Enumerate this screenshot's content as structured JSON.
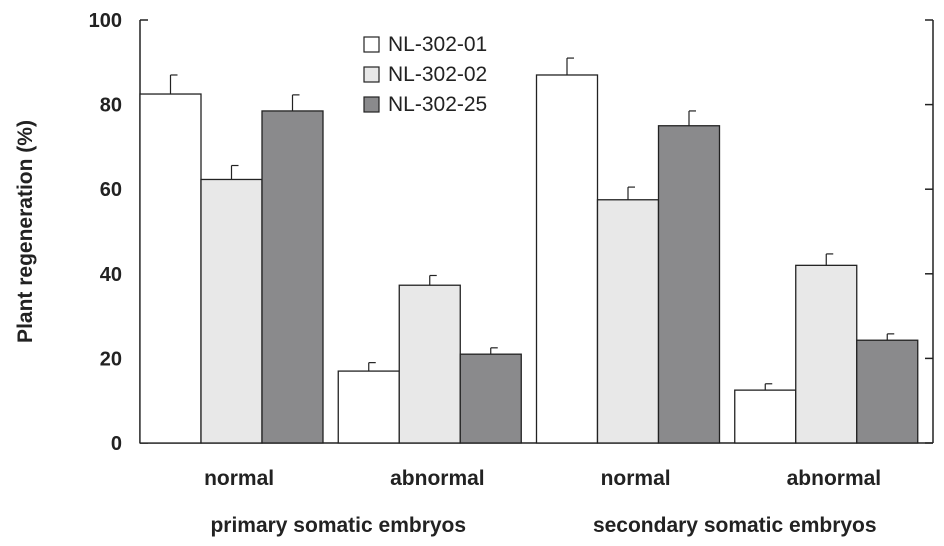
{
  "chart_data": {
    "type": "bar",
    "ylabel": "Plant regeneration (%)",
    "ylim": [
      0,
      100
    ],
    "yticks": [
      "0",
      "20",
      "40",
      "60",
      "80",
      "100"
    ],
    "legend_position": "top-center",
    "grid": false,
    "groups": [
      {
        "label": "primary somatic embryos",
        "categories": [
          "normal",
          "abnormal"
        ]
      },
      {
        "label": "secondary somatic embryos",
        "categories": [
          "normal",
          "abnormal"
        ]
      }
    ],
    "categories": [
      "normal",
      "abnormal",
      "normal",
      "abnormal"
    ],
    "series": [
      {
        "name": "NL-302-01",
        "color": "#ffffff",
        "values": [
          82.5,
          17.0,
          87.0,
          12.5
        ],
        "errors": [
          4.5,
          2.0,
          4.0,
          1.5
        ]
      },
      {
        "name": "NL-302-02",
        "color": "#e8e8e8",
        "values": [
          62.3,
          37.3,
          57.5,
          42.0
        ],
        "errors": [
          3.3,
          2.3,
          3.0,
          2.7
        ]
      },
      {
        "name": "NL-302-25",
        "color": "#8a8a8c",
        "values": [
          78.5,
          21.0,
          75.0,
          24.3
        ],
        "errors": [
          3.8,
          1.5,
          3.5,
          1.5
        ]
      }
    ]
  }
}
